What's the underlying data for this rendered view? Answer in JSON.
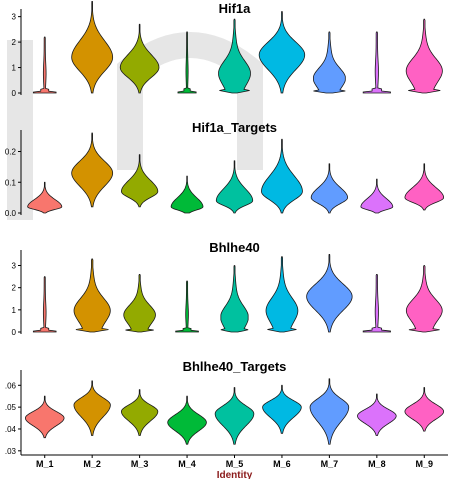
{
  "chart_data": [
    {
      "type": "violin",
      "title": "Hif1a",
      "ylim": [
        0,
        3.3
      ],
      "yticks": [
        0,
        1,
        2,
        3
      ],
      "categories": [
        "M_1",
        "M_2",
        "M_3",
        "M_4",
        "M_5",
        "M_6",
        "M_7",
        "M_8",
        "M_9"
      ],
      "series": [
        {
          "category": "M_1",
          "median": 0.1,
          "max": 2.2,
          "width": 0.5,
          "mode": "zero"
        },
        {
          "category": "M_2",
          "median": 1.4,
          "max": 3.6,
          "width": 0.9,
          "mode": "peak"
        },
        {
          "category": "M_3",
          "median": 1.0,
          "max": 2.7,
          "width": 0.85,
          "mode": "peak"
        },
        {
          "category": "M_4",
          "median": 0.1,
          "max": 2.4,
          "width": 0.4,
          "mode": "zero"
        },
        {
          "category": "M_5",
          "median": 0.8,
          "max": 2.9,
          "width": 0.7,
          "mode": "spread"
        },
        {
          "category": "M_6",
          "median": 1.5,
          "max": 3.2,
          "width": 1.0,
          "mode": "peak"
        },
        {
          "category": "M_7",
          "median": 0.6,
          "max": 2.4,
          "width": 0.7,
          "mode": "spread"
        },
        {
          "category": "M_8",
          "median": 0.2,
          "max": 2.4,
          "width": 0.6,
          "mode": "zero"
        },
        {
          "category": "M_9",
          "median": 0.9,
          "max": 2.9,
          "width": 0.8,
          "mode": "spread"
        }
      ]
    },
    {
      "type": "violin",
      "title": "Hif1a_Targets",
      "ylim": [
        0,
        0.27
      ],
      "yticks": [
        0.0,
        0.1,
        0.2
      ],
      "ytick_labels": [
        "0.0",
        "0.1",
        "0.2"
      ],
      "categories": [
        "M_1",
        "M_2",
        "M_3",
        "M_4",
        "M_5",
        "M_6",
        "M_7",
        "M_8",
        "M_9"
      ],
      "series": [
        {
          "category": "M_1",
          "min": 0.0,
          "median": 0.02,
          "max": 0.1,
          "width": 0.75,
          "mode": "peak"
        },
        {
          "category": "M_2",
          "min": 0.02,
          "median": 0.13,
          "max": 0.26,
          "width": 0.9,
          "mode": "peak"
        },
        {
          "category": "M_3",
          "min": 0.02,
          "median": 0.07,
          "max": 0.19,
          "width": 0.8,
          "mode": "peak"
        },
        {
          "category": "M_4",
          "min": 0.0,
          "median": 0.02,
          "max": 0.12,
          "width": 0.7,
          "mode": "peak"
        },
        {
          "category": "M_5",
          "min": 0.0,
          "median": 0.04,
          "max": 0.17,
          "width": 0.8,
          "mode": "peak"
        },
        {
          "category": "M_6",
          "min": 0.0,
          "median": 0.07,
          "max": 0.24,
          "width": 0.9,
          "mode": "peak"
        },
        {
          "category": "M_7",
          "min": 0.0,
          "median": 0.05,
          "max": 0.16,
          "width": 0.8,
          "mode": "peak"
        },
        {
          "category": "M_8",
          "min": 0.0,
          "median": 0.02,
          "max": 0.11,
          "width": 0.7,
          "mode": "peak"
        },
        {
          "category": "M_9",
          "min": 0.01,
          "median": 0.05,
          "max": 0.16,
          "width": 0.85,
          "mode": "peak"
        }
      ]
    },
    {
      "type": "violin",
      "title": "Bhlhe40",
      "ylim": [
        0,
        3.7
      ],
      "yticks": [
        0,
        1,
        2,
        3
      ],
      "categories": [
        "M_1",
        "M_2",
        "M_3",
        "M_4",
        "M_5",
        "M_6",
        "M_7",
        "M_8",
        "M_9"
      ],
      "series": [
        {
          "category": "M_1",
          "median": 0.0,
          "max": 2.5,
          "width": 0.5,
          "mode": "zero"
        },
        {
          "category": "M_2",
          "median": 1.0,
          "max": 3.3,
          "width": 0.8,
          "mode": "spread"
        },
        {
          "category": "M_3",
          "median": 0.8,
          "max": 2.6,
          "width": 0.7,
          "mode": "spread"
        },
        {
          "category": "M_4",
          "median": 0.0,
          "max": 2.3,
          "width": 0.5,
          "mode": "zero"
        },
        {
          "category": "M_5",
          "median": 0.7,
          "max": 3.0,
          "width": 0.6,
          "mode": "spread"
        },
        {
          "category": "M_6",
          "median": 1.0,
          "max": 3.4,
          "width": 0.7,
          "mode": "spread"
        },
        {
          "category": "M_7",
          "median": 1.6,
          "max": 3.5,
          "width": 1.0,
          "mode": "peak"
        },
        {
          "category": "M_8",
          "median": 0.0,
          "max": 2.6,
          "width": 0.6,
          "mode": "zero"
        },
        {
          "category": "M_9",
          "median": 1.0,
          "max": 3.0,
          "width": 0.8,
          "mode": "spread"
        }
      ]
    },
    {
      "type": "violin",
      "title": "Bhlhe40_Targets",
      "ylim": [
        0.029,
        0.067
      ],
      "yticks": [
        0.03,
        0.04,
        0.05,
        0.06
      ],
      "ytick_labels": [
        ".03",
        ".04",
        ".05",
        ".06"
      ],
      "categories": [
        "M_1",
        "M_2",
        "M_3",
        "M_4",
        "M_5",
        "M_6",
        "M_7",
        "M_8",
        "M_9"
      ],
      "xlabel": "Identity",
      "series": [
        {
          "category": "M_1",
          "min": 0.036,
          "median": 0.045,
          "max": 0.055,
          "width": 0.85,
          "mode": "peak"
        },
        {
          "category": "M_2",
          "min": 0.037,
          "median": 0.051,
          "max": 0.062,
          "width": 0.8,
          "mode": "peak"
        },
        {
          "category": "M_3",
          "min": 0.037,
          "median": 0.048,
          "max": 0.058,
          "width": 0.8,
          "mode": "peak"
        },
        {
          "category": "M_4",
          "min": 0.033,
          "median": 0.043,
          "max": 0.055,
          "width": 0.85,
          "mode": "peak"
        },
        {
          "category": "M_5",
          "min": 0.033,
          "median": 0.047,
          "max": 0.059,
          "width": 0.85,
          "mode": "peak"
        },
        {
          "category": "M_6",
          "min": 0.038,
          "median": 0.05,
          "max": 0.06,
          "width": 0.85,
          "mode": "peak"
        },
        {
          "category": "M_7",
          "min": 0.033,
          "median": 0.05,
          "max": 0.063,
          "width": 0.85,
          "mode": "peak"
        },
        {
          "category": "M_8",
          "min": 0.037,
          "median": 0.046,
          "max": 0.056,
          "width": 0.85,
          "mode": "peak"
        },
        {
          "category": "M_9",
          "min": 0.039,
          "median": 0.048,
          "max": 0.059,
          "width": 0.85,
          "mode": "peak"
        }
      ]
    }
  ],
  "colors": {
    "M_1": "#f8766d",
    "M_2": "#d39200",
    "M_3": "#93aa00",
    "M_4": "#00ba38",
    "M_5": "#00c19f",
    "M_6": "#00b9e3",
    "M_7": "#619cff",
    "M_8": "#db72fb",
    "M_9": "#ff61c3",
    "xlabel": "#8b1a1a"
  }
}
